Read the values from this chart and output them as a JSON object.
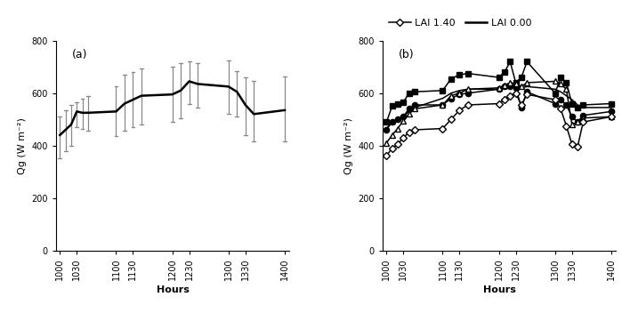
{
  "x_ticks": [
    1000,
    1030,
    1100,
    1130,
    1200,
    1230,
    1300,
    1330,
    1400
  ],
  "panel_a": {
    "x": [
      1000,
      1010,
      1020,
      1030,
      1040,
      1050,
      1100,
      1115,
      1130,
      1145,
      1200,
      1215,
      1230,
      1245,
      1300,
      1315,
      1330,
      1345,
      1400
    ],
    "mean": [
      440,
      460,
      480,
      530,
      525,
      525,
      530,
      560,
      575,
      590,
      595,
      610,
      645,
      635,
      625,
      605,
      555,
      520,
      535
    ],
    "std_upper": [
      510,
      535,
      555,
      565,
      580,
      590,
      625,
      670,
      680,
      695,
      700,
      715,
      720,
      715,
      725,
      685,
      660,
      645,
      665
    ],
    "std_lower": [
      350,
      380,
      400,
      470,
      465,
      455,
      435,
      455,
      470,
      480,
      490,
      505,
      560,
      545,
      520,
      510,
      440,
      415,
      415
    ]
  },
  "panel_b": {
    "x": [
      1000,
      1010,
      1020,
      1030,
      1040,
      1050,
      1100,
      1115,
      1130,
      1145,
      1200,
      1210,
      1220,
      1230,
      1240,
      1250,
      1300,
      1310,
      1320,
      1330,
      1340,
      1350,
      1400
    ],
    "square_filled": [
      490,
      550,
      560,
      565,
      600,
      605,
      610,
      655,
      670,
      675,
      660,
      680,
      720,
      640,
      660,
      720,
      600,
      660,
      640,
      560,
      545,
      555,
      560
    ],
    "circle_filled": [
      460,
      490,
      500,
      510,
      540,
      555,
      555,
      580,
      595,
      600,
      615,
      625,
      625,
      620,
      545,
      605,
      560,
      575,
      555,
      510,
      490,
      515,
      530
    ],
    "triangle_open": [
      410,
      440,
      465,
      495,
      520,
      540,
      555,
      590,
      600,
      615,
      620,
      630,
      640,
      635,
      625,
      640,
      645,
      635,
      615,
      480,
      490,
      505,
      510
    ],
    "plain_line": [
      465,
      490,
      500,
      510,
      530,
      545,
      580,
      600,
      610,
      615,
      615,
      620,
      625,
      625,
      620,
      625,
      615,
      605,
      590,
      575,
      555,
      545,
      545
    ],
    "diamond_open": [
      360,
      390,
      405,
      430,
      450,
      460,
      465,
      500,
      535,
      555,
      560,
      575,
      590,
      600,
      555,
      595,
      575,
      540,
      475,
      405,
      395,
      490,
      510
    ]
  },
  "ylabel": "Qg (W m⁻²)",
  "xlabel": "Hours",
  "ylim": [
    0,
    800
  ],
  "yticks": [
    0,
    200,
    400,
    600,
    800
  ]
}
